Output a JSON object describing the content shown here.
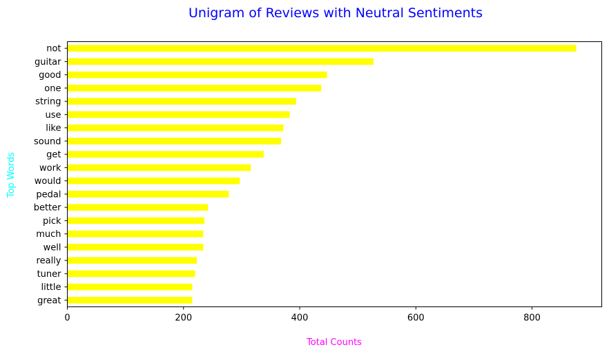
{
  "chart_data": {
    "type": "bar",
    "orientation": "horizontal",
    "title": "Unigram of Reviews with Neutral Sentiments",
    "xlabel": "Total Counts",
    "ylabel": "Top Words",
    "categories": [
      "not",
      "guitar",
      "good",
      "one",
      "string",
      "use",
      "like",
      "sound",
      "get",
      "work",
      "would",
      "pedal",
      "better",
      "pick",
      "much",
      "well",
      "really",
      "tuner",
      "little",
      "great"
    ],
    "values": [
      876,
      527,
      447,
      437,
      394,
      383,
      372,
      368,
      338,
      316,
      297,
      278,
      242,
      236,
      234,
      234,
      223,
      220,
      215,
      215
    ],
    "xlim": [
      0,
      920
    ],
    "xticks": [
      0,
      200,
      400,
      600,
      800
    ],
    "grid": false,
    "colors": {
      "bar": "#ffff00",
      "title": "#0000ff",
      "xlabel": "#ff00ff",
      "ylabel": "#00ffff"
    }
  }
}
